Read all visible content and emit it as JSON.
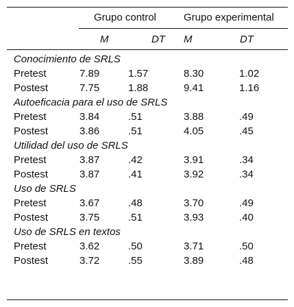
{
  "header": {
    "group_control": "Grupo control",
    "group_experimental": "Grupo experimental",
    "col_m": "M",
    "col_dt": "DT"
  },
  "sections": [
    {
      "title": "Conocimiento de SRLS",
      "rows": [
        {
          "label": "Pretest",
          "ctrl_m": "7.89",
          "ctrl_dt": "1.57",
          "exp_m": "8.30",
          "exp_dt": "1.02"
        },
        {
          "label": "Postest",
          "ctrl_m": "7.75",
          "ctrl_dt": "1.88",
          "exp_m": "9.41",
          "exp_dt": "1.16"
        }
      ]
    },
    {
      "title": "Autoeficacia para el uso de SRLS",
      "rows": [
        {
          "label": "Pretest",
          "ctrl_m": "3.84",
          "ctrl_dt": ".51",
          "exp_m": "3.88",
          "exp_dt": ".49"
        },
        {
          "label": "Postest",
          "ctrl_m": "3.86",
          "ctrl_dt": ".51",
          "exp_m": "4.05",
          "exp_dt": ".45"
        }
      ]
    },
    {
      "title": "Utilidad del uso de SRLS",
      "rows": [
        {
          "label": "Pretest",
          "ctrl_m": "3.87",
          "ctrl_dt": ".42",
          "exp_m": "3.91",
          "exp_dt": ".34"
        },
        {
          "label": "Postest",
          "ctrl_m": "3.87",
          "ctrl_dt": ".41",
          "exp_m": "3.92",
          "exp_dt": ".34"
        }
      ]
    },
    {
      "title": "Uso de SRLS",
      "rows": [
        {
          "label": "Pretest",
          "ctrl_m": "3.67",
          "ctrl_dt": ".48",
          "exp_m": "3.70",
          "exp_dt": ".49"
        },
        {
          "label": "Postest",
          "ctrl_m": "3.75",
          "ctrl_dt": ".51",
          "exp_m": "3.93",
          "exp_dt": ".40"
        }
      ]
    },
    {
      "title": "Uso de SRLS en textos",
      "rows": [
        {
          "label": "Pretest",
          "ctrl_m": "3.62",
          "ctrl_dt": ".50",
          "exp_m": "3.71",
          "exp_dt": ".50"
        },
        {
          "label": "Postest",
          "ctrl_m": "3.72",
          "ctrl_dt": ".55",
          "exp_m": "3.89",
          "exp_dt": ".48"
        }
      ]
    }
  ]
}
